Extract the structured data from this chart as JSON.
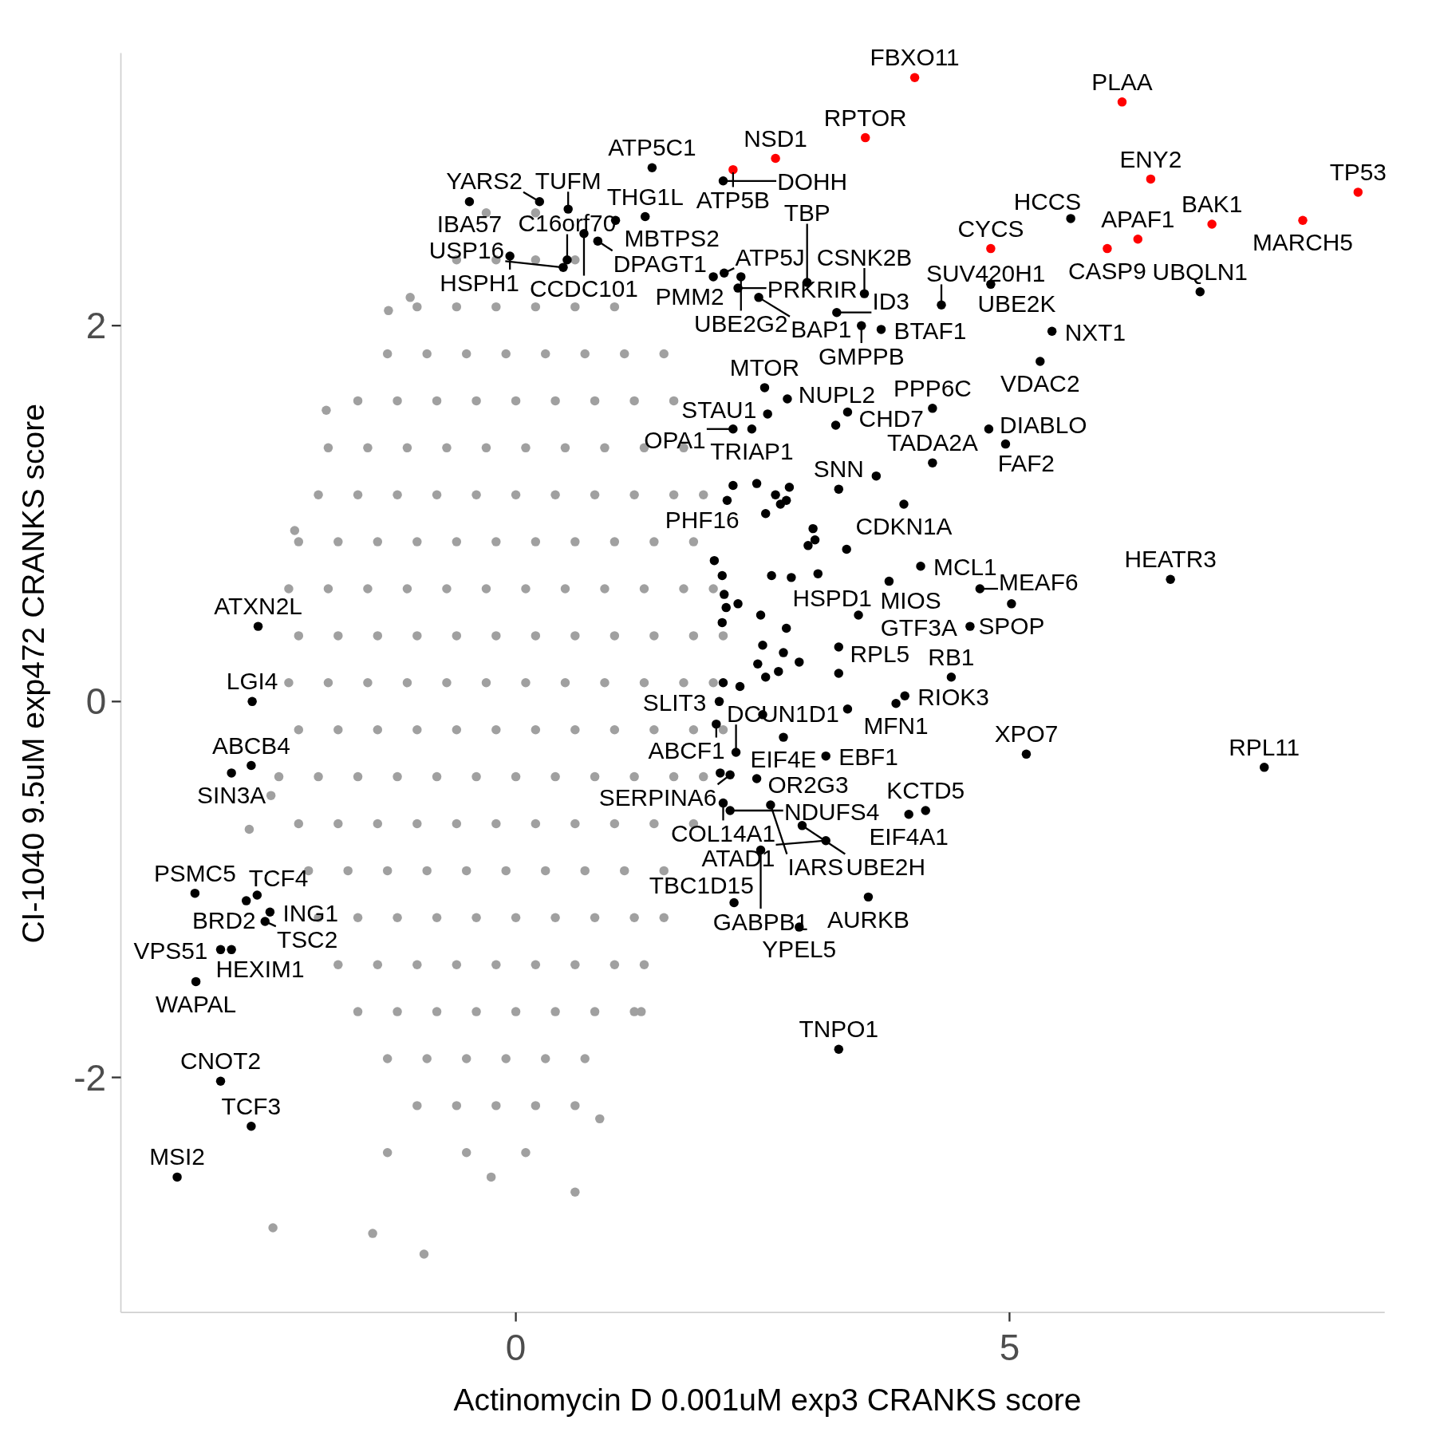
{
  "chart_data": {
    "type": "scatter",
    "xlabel": "Actinomycin D 0.001uM exp3 CRANKS score",
    "ylabel": "CI-1040 9.5uM exp472 CRANKS score",
    "xlim": [
      -4,
      8.8
    ],
    "ylim": [
      -3.25,
      3.45
    ],
    "xticks": [
      0,
      5
    ],
    "yticks": [
      -2,
      0,
      2
    ],
    "marker": "circle",
    "series": [
      {
        "color": "#a0a0a0",
        "x": [
          -0.3,
          0.2,
          -0.6,
          -0.2,
          0.2,
          0.6,
          -1.0,
          -0.6,
          -0.2,
          0.2,
          0.6,
          1.0,
          -1.3,
          -0.9,
          -0.5,
          -0.1,
          0.3,
          0.7,
          1.1,
          1.5,
          -1.6,
          -1.2,
          -0.8,
          -0.4,
          0,
          0.4,
          0.8,
          1.2,
          1.6,
          -1.9,
          -1.5,
          -1.1,
          -0.7,
          -0.3,
          0.1,
          0.5,
          0.9,
          1.3,
          1.7,
          -2.0,
          -1.6,
          -1.2,
          -0.8,
          -0.4,
          0,
          0.4,
          0.8,
          1.2,
          1.6,
          1.9,
          -2.2,
          -1.8,
          -1.4,
          -1.0,
          -0.6,
          -0.2,
          0.2,
          0.6,
          1.0,
          1.4,
          1.8,
          -2.3,
          -1.9,
          -1.5,
          -1.1,
          -0.7,
          -0.3,
          0.1,
          0.5,
          0.9,
          1.3,
          1.7,
          2.0,
          -2.2,
          -1.8,
          -1.4,
          -1.0,
          -0.6,
          -0.2,
          0.2,
          0.6,
          1.0,
          1.4,
          1.8,
          2.1,
          -2.3,
          -1.9,
          -1.5,
          -1.1,
          -0.7,
          -0.3,
          0.1,
          0.5,
          0.9,
          1.3,
          1.7,
          2.0,
          -2.2,
          -1.8,
          -1.4,
          -1.0,
          -0.6,
          -0.2,
          0.2,
          0.6,
          1.0,
          1.4,
          1.8,
          2.1,
          -2.4,
          -2.0,
          -1.6,
          -1.2,
          -0.8,
          -0.4,
          0,
          0.4,
          0.8,
          1.2,
          1.6,
          1.9,
          -2.2,
          -1.8,
          -1.4,
          -1.0,
          -0.6,
          -0.2,
          0.2,
          0.6,
          1.0,
          1.4,
          1.8,
          -2.1,
          -1.7,
          -1.3,
          -0.9,
          -0.5,
          -0.1,
          0.3,
          0.7,
          1.1,
          1.5,
          -2.0,
          -1.6,
          -1.2,
          -0.8,
          -0.4,
          0,
          0.4,
          0.8,
          1.2,
          1.5,
          -1.8,
          -1.4,
          -1.0,
          -0.6,
          -0.2,
          0.2,
          0.6,
          1.0,
          1.3,
          -1.6,
          -1.2,
          -0.8,
          -0.4,
          0,
          0.4,
          0.8,
          1.2,
          -1.3,
          -0.9,
          -0.5,
          -0.1,
          0.3,
          0.7,
          -1.0,
          -0.6,
          -0.2,
          0.2,
          0.6,
          -1.3,
          -0.5,
          0.1,
          -2.46,
          -1.45,
          -0.93,
          0.6,
          -0.25,
          -1.29,
          -1.07,
          -1.92,
          -2.24,
          -2.48,
          -2.7,
          1.27,
          0.85
        ],
        "values": [
          2.6,
          2.6,
          2.35,
          2.35,
          2.35,
          2.35,
          2.1,
          2.1,
          2.1,
          2.1,
          2.1,
          2.1,
          1.85,
          1.85,
          1.85,
          1.85,
          1.85,
          1.85,
          1.85,
          1.85,
          1.6,
          1.6,
          1.6,
          1.6,
          1.6,
          1.6,
          1.6,
          1.6,
          1.6,
          1.35,
          1.35,
          1.35,
          1.35,
          1.35,
          1.35,
          1.35,
          1.35,
          1.35,
          1.35,
          1.1,
          1.1,
          1.1,
          1.1,
          1.1,
          1.1,
          1.1,
          1.1,
          1.1,
          1.1,
          1.1,
          0.85,
          0.85,
          0.85,
          0.85,
          0.85,
          0.85,
          0.85,
          0.85,
          0.85,
          0.85,
          0.85,
          0.6,
          0.6,
          0.6,
          0.6,
          0.6,
          0.6,
          0.6,
          0.6,
          0.6,
          0.6,
          0.6,
          0.6,
          0.35,
          0.35,
          0.35,
          0.35,
          0.35,
          0.35,
          0.35,
          0.35,
          0.35,
          0.35,
          0.35,
          0.35,
          0.1,
          0.1,
          0.1,
          0.1,
          0.1,
          0.1,
          0.1,
          0.1,
          0.1,
          0.1,
          0.1,
          0.1,
          -0.15,
          -0.15,
          -0.15,
          -0.15,
          -0.15,
          -0.15,
          -0.15,
          -0.15,
          -0.15,
          -0.15,
          -0.15,
          -0.15,
          -0.4,
          -0.4,
          -0.4,
          -0.4,
          -0.4,
          -0.4,
          -0.4,
          -0.4,
          -0.4,
          -0.4,
          -0.4,
          -0.4,
          -0.65,
          -0.65,
          -0.65,
          -0.65,
          -0.65,
          -0.65,
          -0.65,
          -0.65,
          -0.65,
          -0.65,
          -0.65,
          -0.9,
          -0.9,
          -0.9,
          -0.9,
          -0.9,
          -0.9,
          -0.9,
          -0.9,
          -0.9,
          -0.9,
          -1.15,
          -1.15,
          -1.15,
          -1.15,
          -1.15,
          -1.15,
          -1.15,
          -1.15,
          -1.15,
          -1.15,
          -1.4,
          -1.4,
          -1.4,
          -1.4,
          -1.4,
          -1.4,
          -1.4,
          -1.4,
          -1.4,
          -1.65,
          -1.65,
          -1.65,
          -1.65,
          -1.65,
          -1.65,
          -1.65,
          -1.65,
          -1.9,
          -1.9,
          -1.9,
          -1.9,
          -1.9,
          -1.9,
          -2.15,
          -2.15,
          -2.15,
          -2.15,
          -2.15,
          -2.4,
          -2.4,
          -2.4,
          -2.8,
          -2.83,
          -2.94,
          -2.61,
          -2.53,
          2.08,
          2.15,
          1.55,
          0.91,
          -0.5,
          -0.68,
          -1.65,
          -2.22
        ]
      },
      {
        "color": "#000000",
        "x": [
          1.38,
          1.31,
          2.1,
          0.53,
          0.24,
          -0.47,
          1.01,
          0.69,
          0.83,
          -0.06,
          0.52,
          0.48,
          2.0,
          2.11,
          2.28,
          2.25,
          2.46,
          2.95,
          3.25,
          3.53,
          3.5,
          3.7,
          4.81,
          5.62,
          4.31,
          6.93,
          5.43,
          5.31,
          2.52,
          2.75,
          2.55,
          2.39,
          2.2,
          3.36,
          4.22,
          4.22,
          4.79,
          4.96,
          3.93,
          3.27,
          2.14,
          3.78,
          4.1,
          4.7,
          5.02,
          4.6,
          6.63,
          3.47,
          3.27,
          4.41,
          3.94,
          3.85,
          2.71,
          5.17,
          7.58,
          2.06,
          2.03,
          2.23,
          2.17,
          2.44,
          2.1,
          2.17,
          3.14,
          3.98,
          4.15,
          2.58,
          2.9,
          3.14,
          2.48,
          3.57,
          2.21,
          2.87,
          3.27,
          -2.61,
          -2.67,
          -2.68,
          -2.88,
          -3.25,
          -2.62,
          -2.73,
          -2.49,
          -2.54,
          -2.99,
          -2.88,
          -3.24,
          -2.99,
          -2.68,
          -3.43,
          2.01,
          2.09,
          2.11,
          2.13,
          2.09,
          2.2,
          2.44,
          2.63,
          2.74,
          2.77,
          2.53,
          2.68,
          3.01,
          2.96,
          3.03,
          2.79,
          3.06,
          2.59,
          2.25,
          2.48,
          2.74,
          2.5,
          2.45,
          2.71,
          2.87,
          3.27,
          2.66,
          2.1,
          2.27,
          2.53,
          3.36,
          2.5,
          3.24,
          3.65,
          3.35,
          2.07
        ],
        "values": [
          2.84,
          2.58,
          2.77,
          2.62,
          2.66,
          2.66,
          2.56,
          2.49,
          2.45,
          2.37,
          2.35,
          2.31,
          2.26,
          2.28,
          2.26,
          2.2,
          2.15,
          2.23,
          2.07,
          2.17,
          2.0,
          1.98,
          2.22,
          2.57,
          2.11,
          2.18,
          1.97,
          1.81,
          1.67,
          1.61,
          1.53,
          1.45,
          1.45,
          1.54,
          1.27,
          1.56,
          1.45,
          1.37,
          1.05,
          1.13,
          1.07,
          0.64,
          0.72,
          0.6,
          0.52,
          0.4,
          0.65,
          0.46,
          0.29,
          0.13,
          0.03,
          -0.01,
          -0.19,
          -0.28,
          -0.35,
          0.0,
          -0.12,
          -0.27,
          -0.39,
          -0.41,
          -0.54,
          -0.58,
          -0.29,
          -0.6,
          -0.58,
          -0.55,
          -0.66,
          -0.74,
          -0.79,
          -1.04,
          -1.07,
          -1.2,
          -1.85,
          0.4,
          0.0,
          -0.34,
          -0.38,
          -1.02,
          -1.03,
          -1.06,
          -1.12,
          -1.17,
          -1.32,
          -1.32,
          -1.49,
          -2.02,
          -2.26,
          -2.53,
          0.75,
          0.67,
          0.57,
          0.5,
          0.42,
          1.15,
          1.16,
          1.1,
          1.07,
          1.14,
          1.0,
          1.05,
          0.92,
          0.83,
          0.86,
          0.66,
          0.68,
          0.67,
          0.52,
          0.46,
          0.39,
          0.3,
          0.2,
          0.26,
          0.21,
          0.15,
          0.16,
          0.1,
          0.08,
          0.13,
          -0.04,
          -0.07,
          1.47,
          1.2,
          0.81,
          -0.38
        ]
      },
      {
        "color": "#ff0000",
        "x": [
          4.04,
          6.14,
          3.54,
          2.63,
          2.2,
          6.43,
          8.53,
          7.05,
          7.97,
          6.3,
          4.81,
          5.99
        ],
        "values": [
          3.32,
          3.19,
          3.0,
          2.89,
          2.83,
          2.78,
          2.71,
          2.54,
          2.56,
          2.46,
          2.41,
          2.41
        ]
      }
    ],
    "annotations": [
      {
        "text": "FBXO11",
        "x": 4.04,
        "y": 3.32
      },
      {
        "text": "PLAA",
        "x": 6.14,
        "y": 3.19
      },
      {
        "text": "RPTOR",
        "x": 3.54,
        "y": 3.0
      },
      {
        "text": "NSD1",
        "x": 2.63,
        "y": 2.89
      },
      {
        "text": "ATP5B",
        "x": 2.2,
        "y": 2.83
      },
      {
        "text": "ENY2",
        "x": 6.43,
        "y": 2.78
      },
      {
        "text": "TP53",
        "x": 8.53,
        "y": 2.71
      },
      {
        "text": "BAK1",
        "x": 7.05,
        "y": 2.54
      },
      {
        "text": "MARCH5",
        "x": 7.97,
        "y": 2.56
      },
      {
        "text": "APAF1",
        "x": 6.3,
        "y": 2.46
      },
      {
        "text": "CYCS",
        "x": 4.81,
        "y": 2.41
      },
      {
        "text": "CASP9",
        "x": 5.99,
        "y": 2.41
      },
      {
        "text": "ATP5C1",
        "x": 1.38,
        "y": 2.84
      },
      {
        "text": "THG1L",
        "x": 1.31,
        "y": 2.58
      },
      {
        "text": "DOHH",
        "x": 2.1,
        "y": 2.77
      },
      {
        "text": "TUFM",
        "x": 0.53,
        "y": 2.62
      },
      {
        "text": "YARS2",
        "x": 0.24,
        "y": 2.66
      },
      {
        "text": "IBA57",
        "x": -0.47,
        "y": 2.66
      },
      {
        "text": "MBTPS2",
        "x": 1.01,
        "y": 2.56
      },
      {
        "text": "CCDC101",
        "x": 0.69,
        "y": 2.49
      },
      {
        "text": "DPAGT1",
        "x": 0.83,
        "y": 2.45
      },
      {
        "text": "HSPH1",
        "x": -0.06,
        "y": 2.37
      },
      {
        "text": "C16orf70",
        "x": 0.52,
        "y": 2.35
      },
      {
        "text": "USP16",
        "x": 0.48,
        "y": 2.31
      },
      {
        "text": "PMM2",
        "x": 2.0,
        "y": 2.26
      },
      {
        "text": "ATP5J",
        "x": 2.11,
        "y": 2.28
      },
      {
        "text": "UBE2G2",
        "x": 2.28,
        "y": 2.26
      },
      {
        "text": "PRKRIR",
        "x": 2.25,
        "y": 2.2
      },
      {
        "text": "BAP1",
        "x": 2.46,
        "y": 2.15
      },
      {
        "text": "TBP",
        "x": 2.95,
        "y": 2.23
      },
      {
        "text": "ID3",
        "x": 3.25,
        "y": 2.07
      },
      {
        "text": "CSNK2B",
        "x": 3.53,
        "y": 2.17
      },
      {
        "text": "GMPPB",
        "x": 3.5,
        "y": 2.0
      },
      {
        "text": "BTAF1",
        "x": 3.7,
        "y": 1.98
      },
      {
        "text": "UBE2K",
        "x": 4.81,
        "y": 2.22
      },
      {
        "text": "HCCS",
        "x": 5.62,
        "y": 2.57
      },
      {
        "text": "SUV420H1",
        "x": 4.31,
        "y": 2.11
      },
      {
        "text": "UBQLN1",
        "x": 6.93,
        "y": 2.18
      },
      {
        "text": "NXT1",
        "x": 5.43,
        "y": 1.97
      },
      {
        "text": "VDAC2",
        "x": 5.31,
        "y": 1.81
      },
      {
        "text": "MTOR",
        "x": 2.52,
        "y": 1.67
      },
      {
        "text": "NUPL2",
        "x": 2.75,
        "y": 1.61
      },
      {
        "text": "STAU1",
        "x": 2.55,
        "y": 1.53
      },
      {
        "text": "TRIAP1",
        "x": 2.39,
        "y": 1.45
      },
      {
        "text": "OPA1",
        "x": 2.2,
        "y": 1.45
      },
      {
        "text": "CHD7",
        "x": 3.36,
        "y": 1.54
      },
      {
        "text": "TADA2A",
        "x": 4.22,
        "y": 1.27
      },
      {
        "text": "PPP6C",
        "x": 4.22,
        "y": 1.56
      },
      {
        "text": "DIABLO",
        "x": 4.79,
        "y": 1.45
      },
      {
        "text": "FAF2",
        "x": 4.96,
        "y": 1.37
      },
      {
        "text": "CDKN1A",
        "x": 3.93,
        "y": 1.05
      },
      {
        "text": "SNN",
        "x": 3.27,
        "y": 1.13
      },
      {
        "text": "PHF16",
        "x": 2.14,
        "y": 1.07
      },
      {
        "text": "MIOS",
        "x": 3.78,
        "y": 0.64
      },
      {
        "text": "MCL1",
        "x": 4.1,
        "y": 0.72
      },
      {
        "text": "MEAF6",
        "x": 4.7,
        "y": 0.6
      },
      {
        "text": "SPOP",
        "x": 5.02,
        "y": 0.52
      },
      {
        "text": "GTF3A",
        "x": 4.6,
        "y": 0.4
      },
      {
        "text": "HEATR3",
        "x": 6.63,
        "y": 0.65
      },
      {
        "text": "HSPD1",
        "x": 3.47,
        "y": 0.46
      },
      {
        "text": "RPL5",
        "x": 3.27,
        "y": 0.29
      },
      {
        "text": "RB1",
        "x": 4.41,
        "y": 0.13
      },
      {
        "text": "RIOK3",
        "x": 3.94,
        "y": 0.03
      },
      {
        "text": "MFN1",
        "x": 3.85,
        "y": -0.01
      },
      {
        "text": "EIF4E",
        "x": 2.71,
        "y": -0.19
      },
      {
        "text": "XPO7",
        "x": 5.17,
        "y": -0.28
      },
      {
        "text": "RPL11",
        "x": 7.58,
        "y": -0.35
      },
      {
        "text": "SLIT3",
        "x": 2.06,
        "y": 0.0
      },
      {
        "text": "ABCF1",
        "x": 2.03,
        "y": -0.12
      },
      {
        "text": "DCUN1D1",
        "x": 2.23,
        "y": -0.27
      },
      {
        "text": "SERPINA6",
        "x": 2.17,
        "y": -0.39
      },
      {
        "text": "OR2G3",
        "x": 2.44,
        "y": -0.41
      },
      {
        "text": "COL14A1",
        "x": 2.1,
        "y": -0.54
      },
      {
        "text": "NDUFS4",
        "x": 2.17,
        "y": -0.58
      },
      {
        "text": "EBF1",
        "x": 3.14,
        "y": -0.29
      },
      {
        "text": "EIF4A1",
        "x": 3.98,
        "y": -0.6
      },
      {
        "text": "KCTD5",
        "x": 4.15,
        "y": -0.58
      },
      {
        "text": "IARS",
        "x": 2.58,
        "y": -0.55
      },
      {
        "text": "UBE2H",
        "x": 2.9,
        "y": -0.66
      },
      {
        "text": "ATAD1",
        "x": 3.14,
        "y": -0.74
      },
      {
        "text": "GABPB1",
        "x": 2.48,
        "y": -0.79
      },
      {
        "text": "AURKB",
        "x": 3.57,
        "y": -1.04
      },
      {
        "text": "TBC1D15",
        "x": 2.21,
        "y": -1.07
      },
      {
        "text": "YPEL5",
        "x": 2.87,
        "y": -1.2
      },
      {
        "text": "TNPO1",
        "x": 3.27,
        "y": -1.85
      },
      {
        "text": "ATXN2L",
        "x": -2.61,
        "y": 0.4
      },
      {
        "text": "LGI4",
        "x": -2.67,
        "y": 0.0
      },
      {
        "text": "ABCB4",
        "x": -2.68,
        "y": -0.34
      },
      {
        "text": "SIN3A",
        "x": -2.88,
        "y": -0.38
      },
      {
        "text": "PSMC5",
        "x": -3.25,
        "y": -1.02
      },
      {
        "text": "TCF4",
        "x": -2.62,
        "y": -1.03
      },
      {
        "text": "BRD2",
        "x": -2.73,
        "y": -1.06
      },
      {
        "text": "ING1",
        "x": -2.49,
        "y": -1.12
      },
      {
        "text": "TSC2",
        "x": -2.54,
        "y": -1.17
      },
      {
        "text": "VPS51",
        "x": -2.99,
        "y": -1.32
      },
      {
        "text": "HEXIM1",
        "x": -2.88,
        "y": -1.32
      },
      {
        "text": "WAPAL",
        "x": -3.24,
        "y": -1.49
      },
      {
        "text": "CNOT2",
        "x": -2.99,
        "y": -2.02
      },
      {
        "text": "TCF3",
        "x": -2.68,
        "y": -2.26
      },
      {
        "text": "MSI2",
        "x": -3.43,
        "y": -2.53
      }
    ]
  }
}
